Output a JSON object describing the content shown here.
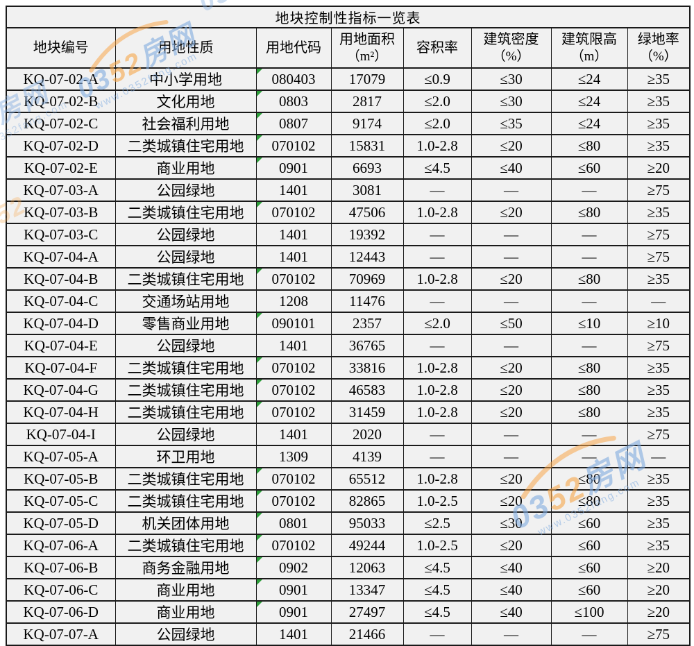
{
  "title": "地块控制性指标一览表",
  "table": {
    "columns": [
      {
        "label": "地块编号",
        "sub": ""
      },
      {
        "label": "用地性质",
        "sub": ""
      },
      {
        "label": "用地代码",
        "sub": ""
      },
      {
        "label": "用地面积",
        "sub": "（m²）"
      },
      {
        "label": "容积率",
        "sub": ""
      },
      {
        "label": "建筑密度",
        "sub": "（%）"
      },
      {
        "label": "建筑限高",
        "sub": "（m）"
      },
      {
        "label": "绿地率",
        "sub": "（%）"
      }
    ],
    "rows": [
      {
        "id": "KQ-07-02-A",
        "nature": "中小学用地",
        "code": "080403",
        "area": "17079",
        "far": "≤0.9",
        "density": "≤30",
        "height": "≤24",
        "green": "≥35",
        "code_marker": true,
        "highlight": [
          "area"
        ]
      },
      {
        "id": "KQ-07-02-B",
        "nature": "文化用地",
        "code": "0803",
        "area": "2817",
        "far": "≤2.0",
        "density": "≤30",
        "height": "≤24",
        "green": "≥35",
        "code_marker": true,
        "highlight": [
          "area"
        ]
      },
      {
        "id": "KQ-07-02-C",
        "nature": "社会福利用地",
        "code": "0807",
        "area": "9174",
        "far": "≤2.0",
        "density": "≤35",
        "height": "≤24",
        "green": "≥35",
        "code_marker": true,
        "highlight": [
          "row"
        ]
      },
      {
        "id": "KQ-07-02-D",
        "nature": "二类城镇住宅用地",
        "code": "070102",
        "area": "15831",
        "far": "1.0-2.8",
        "density": "≤20",
        "height": "≤80",
        "green": "≥35",
        "code_marker": true,
        "highlight": [
          "row"
        ]
      },
      {
        "id": "KQ-07-02-E",
        "nature": "商业用地",
        "code": "0901",
        "area": "6693",
        "far": "≤4.5",
        "density": "≤40",
        "height": "≤60",
        "green": "≥20",
        "code_marker": true,
        "highlight": [
          "row"
        ]
      },
      {
        "id": "KQ-07-03-A",
        "nature": "公园绿地",
        "code": "1401",
        "area": "3081",
        "far": "—",
        "density": "—",
        "height": "—",
        "green": "≥75",
        "code_marker": false,
        "highlight": []
      },
      {
        "id": "KQ-07-03-B",
        "nature": "二类城镇住宅用地",
        "code": "070102",
        "area": "47506",
        "far": "1.0-2.8",
        "density": "≤20",
        "height": "≤80",
        "green": "≥35",
        "code_marker": true,
        "highlight": []
      },
      {
        "id": "KQ-07-03-C",
        "nature": "公园绿地",
        "code": "1401",
        "area": "19392",
        "far": "—",
        "density": "—",
        "height": "—",
        "green": "≥75",
        "code_marker": false,
        "highlight": []
      },
      {
        "id": "KQ-07-04-A",
        "nature": "公园绿地",
        "code": "1401",
        "area": "12443",
        "far": "—",
        "density": "—",
        "height": "—",
        "green": "≥75",
        "code_marker": false,
        "highlight": []
      },
      {
        "id": "KQ-07-04-B",
        "nature": "二类城镇住宅用地",
        "code": "070102",
        "area": "70969",
        "far": "1.0-2.8",
        "density": "≤20",
        "height": "≤80",
        "green": "≥35",
        "code_marker": true,
        "highlight": []
      },
      {
        "id": "KQ-07-04-C",
        "nature": "交通场站用地",
        "code": "1208",
        "area": "11476",
        "far": "—",
        "density": "—",
        "height": "—",
        "green": "—",
        "code_marker": false,
        "highlight": []
      },
      {
        "id": "KQ-07-04-D",
        "nature": "零售商业用地",
        "code": "090101",
        "area": "2357",
        "far": "≤2.0",
        "density": "≤50",
        "height": "≤10",
        "green": "≥10",
        "code_marker": true,
        "highlight": [
          "height"
        ]
      },
      {
        "id": "KQ-07-04-E",
        "nature": "公园绿地",
        "code": "1401",
        "area": "36765",
        "far": "—",
        "density": "—",
        "height": "—",
        "green": "≥75",
        "code_marker": false,
        "highlight": []
      },
      {
        "id": "KQ-07-04-F",
        "nature": "二类城镇住宅用地",
        "code": "070102",
        "area": "33816",
        "far": "1.0-2.8",
        "density": "≤20",
        "height": "≤80",
        "green": "≥35",
        "code_marker": true,
        "highlight": []
      },
      {
        "id": "KQ-07-04-G",
        "nature": "二类城镇住宅用地",
        "code": "070102",
        "area": "46583",
        "far": "1.0-2.8",
        "density": "≤20",
        "height": "≤80",
        "green": "≥35",
        "code_marker": true,
        "highlight": [
          "area"
        ]
      },
      {
        "id": "KQ-07-04-H",
        "nature": "二类城镇住宅用地",
        "code": "070102",
        "area": "31459",
        "far": "1.0-2.8",
        "density": "≤20",
        "height": "≤80",
        "green": "≥35",
        "code_marker": true,
        "highlight": [
          "area"
        ]
      },
      {
        "id": "KQ-07-04-I",
        "nature": "公园绿地",
        "code": "1401",
        "area": "2020",
        "far": "—",
        "density": "—",
        "height": "—",
        "green": "≥75",
        "code_marker": false,
        "highlight": [
          "area"
        ]
      },
      {
        "id": "KQ-07-05-A",
        "nature": "环卫用地",
        "code": "1309",
        "area": "4139",
        "far": "—",
        "density": "—",
        "height": "—",
        "green": "—",
        "code_marker": false,
        "highlight": []
      },
      {
        "id": "KQ-07-05-B",
        "nature": "二类城镇住宅用地",
        "code": "070102",
        "area": "65512",
        "far": "1.0-2.8",
        "density": "≤20",
        "height": "≤80",
        "green": "≥35",
        "code_marker": true,
        "highlight": []
      },
      {
        "id": "KQ-07-05-C",
        "nature": "二类城镇住宅用地",
        "code": "070102",
        "area": "82865",
        "far": "1.0-2.5",
        "density": "≤20",
        "height": "≤80",
        "green": "≥35",
        "code_marker": true,
        "highlight": []
      },
      {
        "id": "KQ-07-05-D",
        "nature": "机关团体用地",
        "code": "0801",
        "area": "95033",
        "far": "≤2.5",
        "density": "≤30",
        "height": "≤60",
        "green": "≥35",
        "code_marker": true,
        "highlight": []
      },
      {
        "id": "KQ-07-06-A",
        "nature": "二类城镇住宅用地",
        "code": "070102",
        "area": "49244",
        "far": "1.0-2.5",
        "density": "≤20",
        "height": "≤60",
        "green": "≥35",
        "code_marker": true,
        "highlight": [
          "area"
        ]
      },
      {
        "id": "KQ-07-06-B",
        "nature": "商务金融用地",
        "code": "0902",
        "area": "12063",
        "far": "≤4.5",
        "density": "≤40",
        "height": "≤60",
        "green": "≥20",
        "code_marker": true,
        "highlight": [
          "nature",
          "area"
        ]
      },
      {
        "id": "KQ-07-06-C",
        "nature": "商业用地",
        "code": "0901",
        "area": "13347",
        "far": "≤4.5",
        "density": "≤40",
        "height": "≤60",
        "green": "≥20",
        "code_marker": true,
        "highlight": [
          "area"
        ]
      },
      {
        "id": "KQ-07-06-D",
        "nature": "商业用地",
        "code": "0901",
        "area": "27497",
        "far": "≤4.5",
        "density": "≤40",
        "height": "≤100",
        "green": "≥20",
        "code_marker": true,
        "highlight": [
          "height"
        ]
      },
      {
        "id": "KQ-07-07-A",
        "nature": "公园绿地",
        "code": "1401",
        "area": "21466",
        "far": "—",
        "density": "—",
        "height": "—",
        "green": "≥75",
        "code_marker": false,
        "highlight": []
      }
    ]
  },
  "watermark": {
    "brand_left": "03",
    "brand_mid": "52",
    "brand_right": "房网",
    "url": "www.0352fang.com"
  },
  "colors": {
    "highlight_yellow": "#ffff00",
    "cell_background": "#f1f1f1",
    "grid_border": "#1a1a1a",
    "code_marker_green": "#2d9e3a",
    "watermark_blue": "#80ace0",
    "watermark_orange": "#f7a64a"
  }
}
